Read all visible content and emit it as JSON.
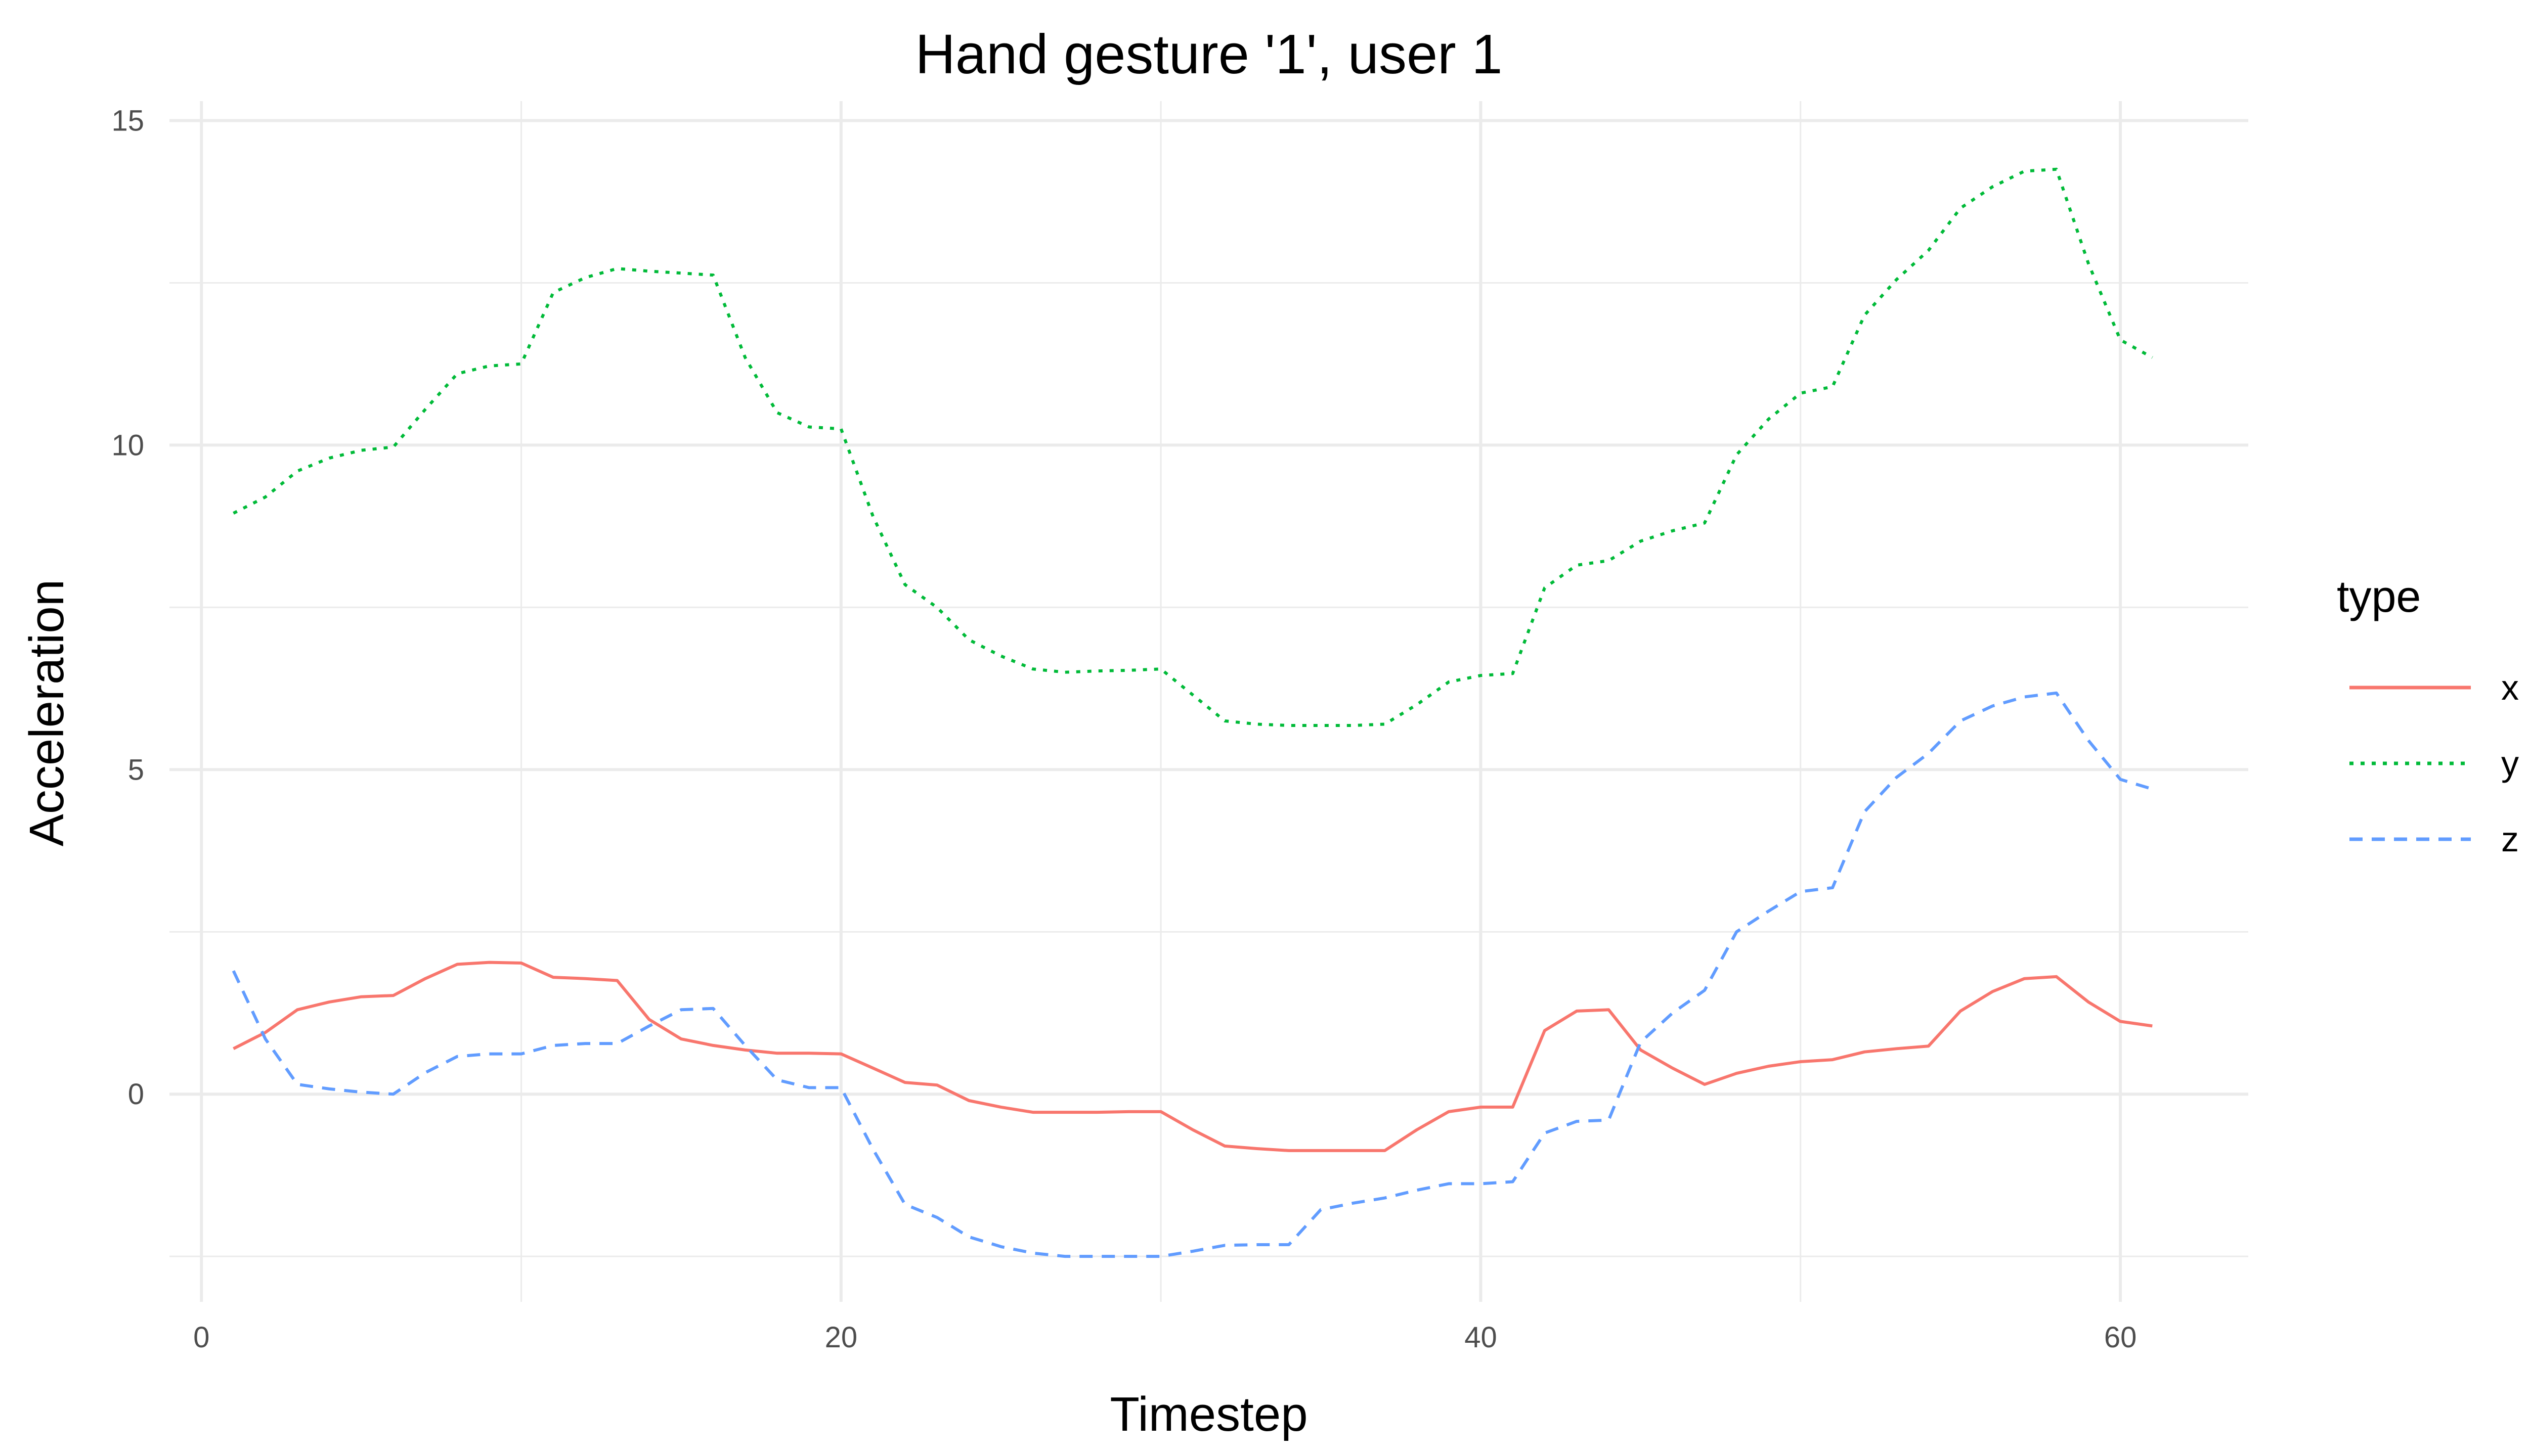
{
  "chart_data": {
    "type": "line",
    "title": "Hand gesture '1', user 1",
    "xlabel": "Timestep",
    "ylabel": "Acceleration",
    "xlim": [
      -1,
      64
    ],
    "ylim": [
      -3.2,
      15.3
    ],
    "xticks": [
      0,
      20,
      40,
      60
    ],
    "yticks": [
      0,
      5,
      10,
      15
    ],
    "grid": true,
    "legend": {
      "title": "type",
      "position": "right"
    },
    "x": [
      1,
      2,
      3,
      4,
      5,
      6,
      7,
      8,
      9,
      10,
      11,
      12,
      13,
      14,
      15,
      16,
      17,
      18,
      19,
      20,
      21,
      22,
      23,
      24,
      25,
      26,
      27,
      28,
      29,
      30,
      31,
      32,
      33,
      34,
      35,
      36,
      37,
      38,
      39,
      40,
      41,
      42,
      43,
      44,
      45,
      46,
      47,
      48,
      49,
      50,
      51,
      52,
      53,
      54,
      55,
      56,
      57,
      58,
      59,
      60,
      61
    ],
    "series": [
      {
        "name": "x",
        "color": "#F8766D",
        "dash": "solid",
        "values": [
          0.7,
          0.95,
          1.3,
          1.42,
          1.5,
          1.52,
          1.78,
          2.0,
          2.03,
          2.02,
          1.8,
          1.78,
          1.75,
          1.15,
          0.85,
          0.75,
          0.68,
          0.63,
          0.63,
          0.62,
          0.4,
          0.18,
          0.14,
          -0.1,
          -0.2,
          -0.28,
          -0.28,
          -0.28,
          -0.27,
          -0.27,
          -0.55,
          -0.8,
          -0.84,
          -0.87,
          -0.87,
          -0.87,
          -0.87,
          -0.55,
          -0.27,
          -0.2,
          -0.2,
          0.98,
          1.28,
          1.3,
          0.68,
          0.4,
          0.15,
          0.32,
          0.43,
          0.5,
          0.53,
          0.65,
          0.7,
          0.74,
          1.28,
          1.58,
          1.78,
          1.81,
          1.42,
          1.12,
          1.05
        ]
      },
      {
        "name": "y",
        "color": "#00BA38",
        "dash": "dotted",
        "values": [
          8.95,
          9.2,
          9.6,
          9.8,
          9.92,
          9.97,
          10.55,
          11.1,
          11.22,
          11.25,
          12.35,
          12.58,
          12.72,
          12.68,
          12.65,
          12.62,
          11.35,
          10.5,
          10.28,
          10.25,
          8.9,
          7.85,
          7.5,
          7.0,
          6.75,
          6.55,
          6.5,
          6.52,
          6.53,
          6.55,
          6.15,
          5.75,
          5.7,
          5.68,
          5.68,
          5.68,
          5.7,
          6.0,
          6.35,
          6.45,
          6.48,
          7.8,
          8.15,
          8.22,
          8.52,
          8.68,
          8.8,
          9.85,
          10.4,
          10.8,
          10.9,
          12.0,
          12.55,
          13.0,
          13.65,
          13.98,
          14.22,
          14.25,
          12.8,
          11.62,
          11.35
        ]
      },
      {
        "name": "z",
        "color": "#619CFF",
        "dash": "dashed",
        "values": [
          1.9,
          0.85,
          0.15,
          0.08,
          0.03,
          0.0,
          0.33,
          0.58,
          0.62,
          0.62,
          0.75,
          0.78,
          0.78,
          1.05,
          1.3,
          1.32,
          0.75,
          0.22,
          0.1,
          0.1,
          -0.85,
          -1.7,
          -1.9,
          -2.2,
          -2.35,
          -2.45,
          -2.5,
          -2.5,
          -2.5,
          -2.5,
          -2.42,
          -2.33,
          -2.32,
          -2.32,
          -1.78,
          -1.68,
          -1.6,
          -1.48,
          -1.38,
          -1.38,
          -1.35,
          -0.6,
          -0.42,
          -0.4,
          0.8,
          1.25,
          1.6,
          2.5,
          2.82,
          3.12,
          3.18,
          4.35,
          4.88,
          5.25,
          5.75,
          5.98,
          6.12,
          6.18,
          5.45,
          4.85,
          4.7
        ]
      }
    ]
  }
}
